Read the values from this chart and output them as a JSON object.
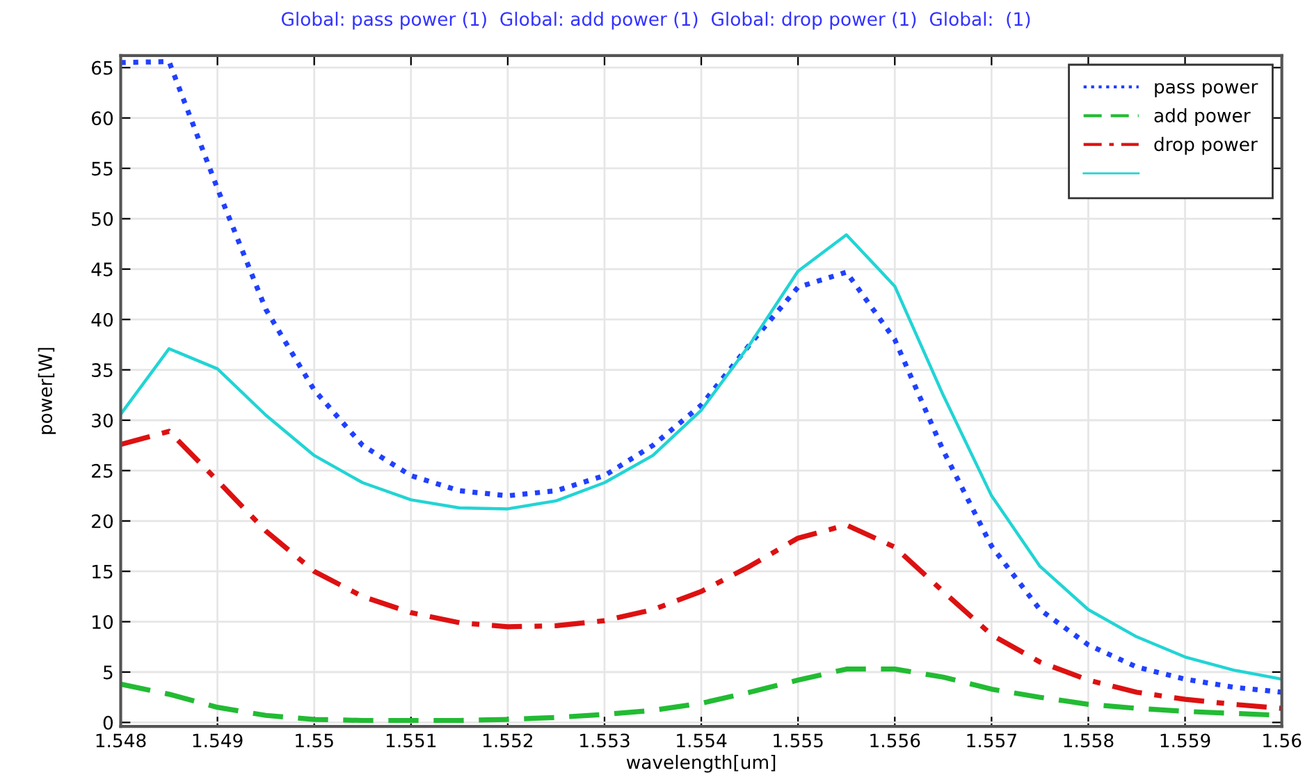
{
  "chart_data": {
    "type": "line",
    "title": "Global: pass power (1)  Global: add power (1)  Global: drop power (1)  Global:  (1)",
    "xlabel": "wavelength[um]",
    "ylabel": "power[W]",
    "x": [
      1.548,
      1.5485,
      1.549,
      1.5495,
      1.55,
      1.5505,
      1.551,
      1.5515,
      1.552,
      1.5525,
      1.553,
      1.5535,
      1.554,
      1.5545,
      1.555,
      1.5555,
      1.556,
      1.5565,
      1.557,
      1.5575,
      1.558,
      1.5585,
      1.559,
      1.5595,
      1.56
    ],
    "series": [
      {
        "name": "pass power",
        "color": "#2040ff",
        "line_style": "dotted",
        "values": [
          65.5,
          65.6,
          53,
          41,
          33,
          27.5,
          24.5,
          23,
          22.5,
          23,
          24.5,
          27.5,
          31.5,
          37.5,
          43.2,
          44.7,
          38,
          27,
          17.5,
          11.2,
          7.7,
          5.5,
          4.3,
          3.5,
          3.0
        ]
      },
      {
        "name": "add power",
        "color": "#22bb33",
        "line_style": "dashed",
        "values": [
          3.8,
          2.8,
          1.5,
          0.7,
          0.3,
          0.2,
          0.2,
          0.2,
          0.3,
          0.5,
          0.8,
          1.2,
          1.9,
          3.0,
          4.2,
          5.3,
          5.3,
          4.5,
          3.3,
          2.5,
          1.8,
          1.4,
          1.1,
          0.9,
          0.7
        ]
      },
      {
        "name": "drop power",
        "color": "#dd1111",
        "line_style": "dashdot",
        "values": [
          27.6,
          28.9,
          24,
          19,
          15,
          12.5,
          10.9,
          9.9,
          9.5,
          9.6,
          10.1,
          11.2,
          13,
          15.5,
          18.3,
          19.6,
          17.4,
          13,
          8.7,
          6.0,
          4.2,
          3.0,
          2.3,
          1.8,
          1.4
        ]
      },
      {
        "color": "#22d4d4",
        "line_style": "solid",
        "values": [
          30.6,
          37.1,
          35.1,
          30.5,
          26.5,
          23.8,
          22.1,
          21.3,
          21.2,
          22,
          23.8,
          26.5,
          31,
          37.5,
          44.8,
          48.4,
          43.3,
          32.5,
          22.5,
          15.5,
          11.2,
          8.5,
          6.5,
          5.2,
          4.3
        ]
      }
    ],
    "xlim": [
      1.548,
      1.56
    ],
    "ylim": [
      -0.4,
      66.2
    ],
    "xticks": [
      1.548,
      1.549,
      1.55,
      1.551,
      1.552,
      1.553,
      1.554,
      1.555,
      1.556,
      1.557,
      1.558,
      1.559,
      1.56
    ],
    "yticks": [
      0,
      5,
      10,
      15,
      20,
      25,
      30,
      35,
      40,
      45,
      50,
      55,
      60,
      65
    ],
    "grid": true,
    "legend": "top right"
  }
}
